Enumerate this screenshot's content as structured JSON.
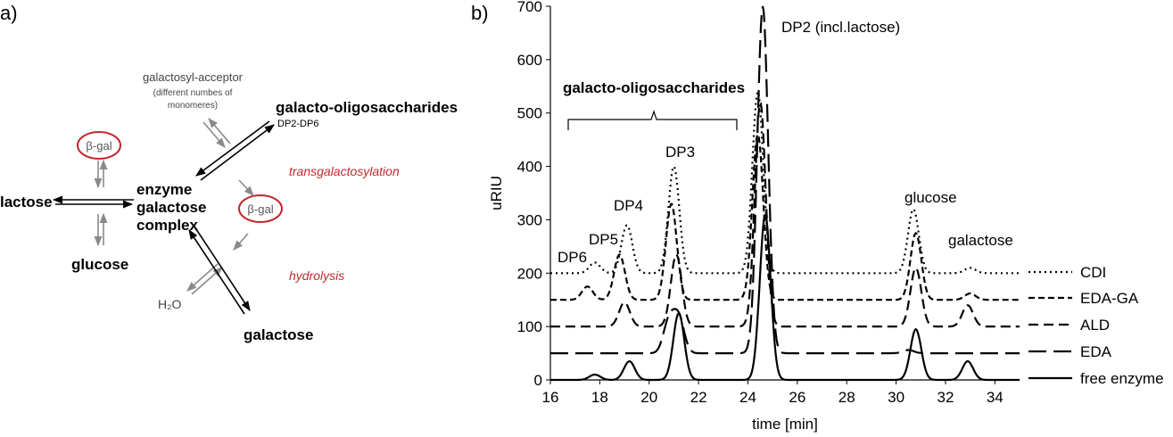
{
  "panel_a": {
    "label": "a)",
    "nodes": {
      "lactose": "lactose",
      "complex_line1": "enzyme",
      "complex_line2": "galactose",
      "complex_line3": "complex",
      "glucose": "glucose",
      "galactose": "galactose",
      "gos": "galacto-oligosaccharides",
      "gos_sub": "DP2-DP6",
      "acceptor": "galactosyl-acceptor",
      "acceptor_note1": "(different numbes of",
      "acceptor_note2": "monomeres)",
      "water": "H₂O",
      "enzyme_top": "β-gal",
      "enzyme_right": "β-gal",
      "transgal": "transgalactosylation",
      "hydrolysis": "hydrolysis"
    },
    "colors": {
      "enzyme_circle": "#c0282e",
      "reaction_label": "#c0282e",
      "grey_arrow": "#8a8a8a"
    }
  },
  "chart_data": {
    "panel_label": "b)",
    "type": "line",
    "xlabel": "time [min]",
    "ylabel": "uRIU",
    "xlim": [
      16,
      35
    ],
    "ylim": [
      0,
      700
    ],
    "xticks": [
      16,
      18,
      20,
      22,
      24,
      26,
      28,
      30,
      32,
      34
    ],
    "yticks": [
      0,
      100,
      200,
      300,
      400,
      500,
      600,
      700
    ],
    "grid": false,
    "legend_position": "right",
    "annotations": {
      "gos": "galacto-oligosaccharides",
      "dp6": "DP6",
      "dp5": "DP5",
      "dp4": "DP4",
      "dp3": "DP3",
      "dp2": "DP2  (incl.lactose)",
      "glucose": "glucose",
      "galactose": "galactose"
    },
    "series": [
      {
        "name": "CDI",
        "dash": "2,4",
        "baseline": 200,
        "peaks": [
          [
            17.8,
            220
          ],
          [
            19.1,
            290
          ],
          [
            21.0,
            400
          ],
          [
            24.4,
            540
          ],
          [
            30.7,
            320
          ],
          [
            33.0,
            210
          ]
        ]
      },
      {
        "name": "EDA-GA",
        "dash": "7,4",
        "baseline": 150,
        "peaks": [
          [
            17.5,
            175
          ],
          [
            18.8,
            235
          ],
          [
            20.9,
            330
          ],
          [
            24.4,
            460
          ],
          [
            30.8,
            275
          ],
          [
            33.0,
            162
          ]
        ]
      },
      {
        "name": "ALD",
        "dash": "11,6",
        "baseline": 100,
        "peaks": [
          [
            19.0,
            145
          ],
          [
            21.1,
            235
          ],
          [
            24.5,
            520
          ],
          [
            30.8,
            210
          ],
          [
            32.9,
            140
          ]
        ]
      },
      {
        "name": "EDA",
        "dash": "20,8",
        "baseline": 50,
        "peaks": [
          [
            20.8,
            110
          ],
          [
            21.2,
            115
          ],
          [
            24.6,
            700
          ],
          [
            30.5,
            56
          ]
        ]
      },
      {
        "name": "free enzyme",
        "dash": "none",
        "baseline": 0,
        "peaks": [
          [
            17.8,
            10
          ],
          [
            19.2,
            35
          ],
          [
            21.2,
            125
          ],
          [
            24.7,
            310
          ],
          [
            30.8,
            95
          ],
          [
            32.9,
            35
          ]
        ]
      }
    ]
  }
}
